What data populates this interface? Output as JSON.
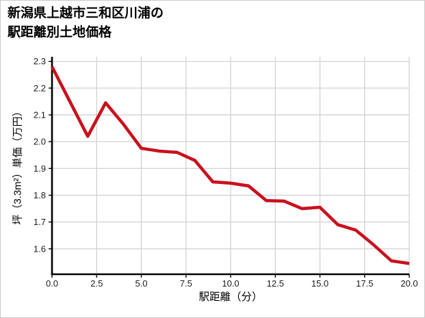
{
  "title": {
    "line1": "新潟県上越市三和区川浦の",
    "line2": "駅距離別土地価格"
  },
  "chart_data": {
    "type": "line",
    "title": "新潟県上越市三和区川浦の駅距離別土地価格",
    "xlabel": "駅距離（分）",
    "ylabel": "坪（3.3m²）単価（万円）",
    "x": [
      0,
      1,
      2,
      3,
      4,
      5,
      6,
      7,
      8,
      9,
      10,
      11,
      12,
      13,
      14,
      15,
      16,
      17,
      18,
      19,
      20
    ],
    "y": [
      2.28,
      2.15,
      2.02,
      2.145,
      2.065,
      1.975,
      1.965,
      1.96,
      1.93,
      1.85,
      1.845,
      1.835,
      1.78,
      1.778,
      1.75,
      1.755,
      1.69,
      1.67,
      1.615,
      1.555,
      1.545
    ],
    "xlim": [
      0,
      20
    ],
    "ylim": [
      1.505,
      2.317
    ],
    "x_ticks": [
      0,
      2.5,
      5,
      7.5,
      10,
      12.5,
      15,
      17.5,
      20
    ],
    "x_tick_labels": [
      "0.0",
      "2.5",
      "5.0",
      "7.5",
      "10.0",
      "12.5",
      "15.0",
      "17.5",
      "20.0"
    ],
    "y_ticks": [
      1.6,
      1.7,
      1.8,
      1.9,
      2.0,
      2.1,
      2.2,
      2.3
    ],
    "y_tick_labels": [
      "1.6",
      "1.7",
      "1.8",
      "1.9",
      "2.0",
      "2.1",
      "2.2",
      "2.3"
    ],
    "grid": true,
    "legend": "none",
    "line_color": "#c8111d",
    "grid_color": "#d4d4d4",
    "axis_color": "#000000",
    "tick_label_color": "#1a1a1a"
  }
}
